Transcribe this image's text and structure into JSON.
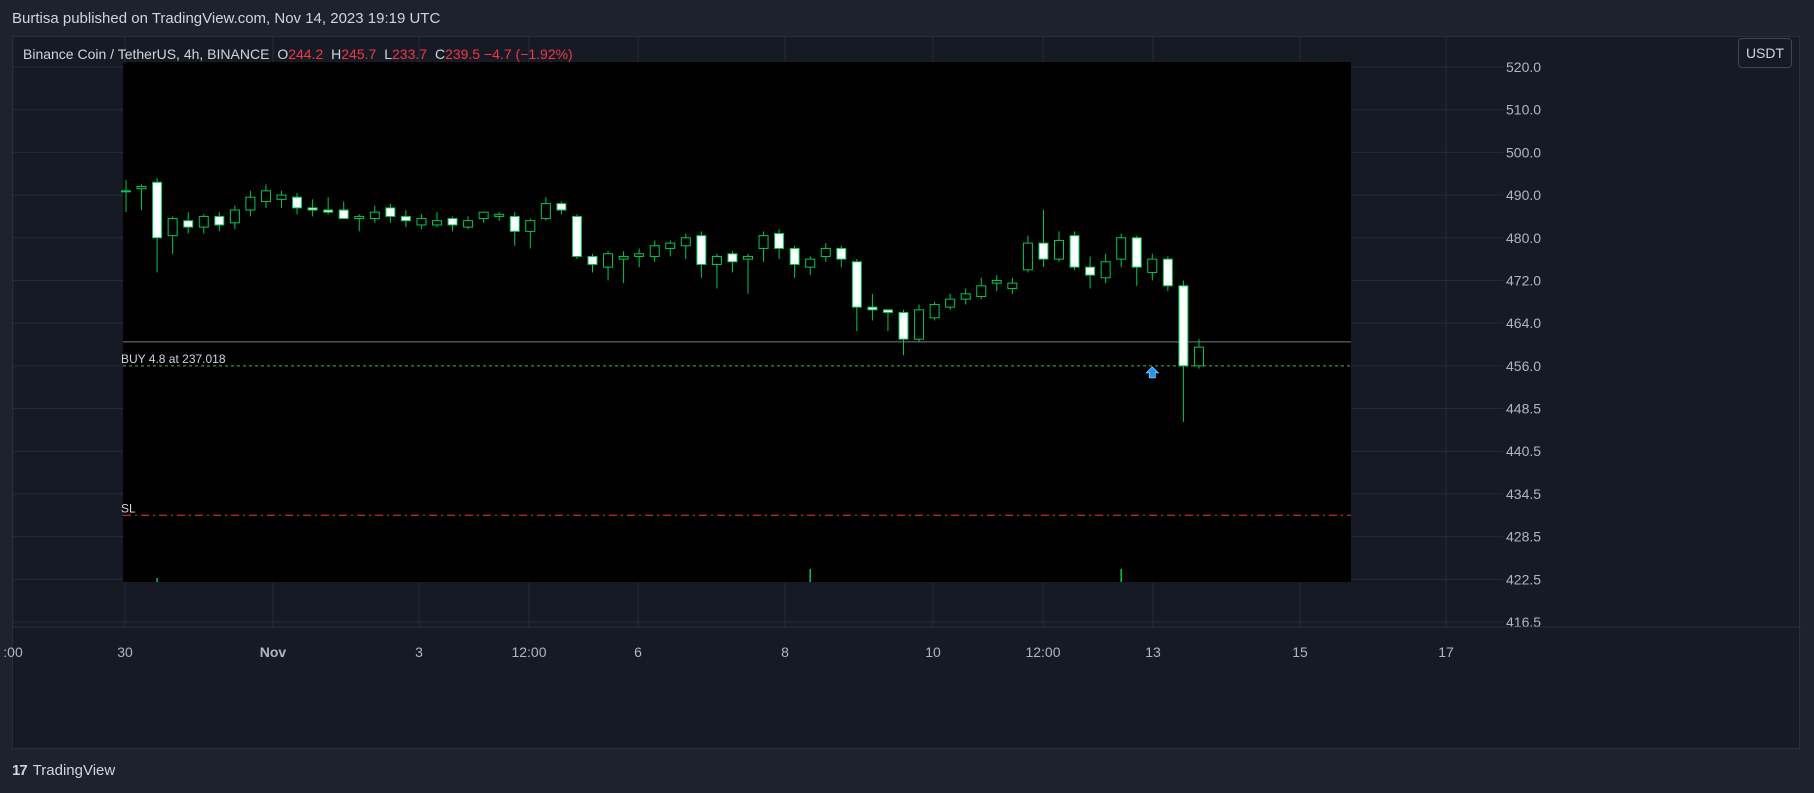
{
  "header": {
    "published_text": "Burtisa published on TradingView.com, Nov 14, 2023 19:19 UTC"
  },
  "legend": {
    "symbol": "Binance Coin / TetherUS, 4h, BINANCE",
    "open_label": "O",
    "open": "244.2",
    "high_label": "H",
    "high": "245.7",
    "low_label": "L",
    "low": "233.7",
    "close_label": "C",
    "close": "239.5",
    "change": "−4.7 (−1.92%)"
  },
  "currency_button": "USDT",
  "footer": {
    "brand": "TradingView",
    "logo_glyph": "17"
  },
  "colors": {
    "background": "#1e222d",
    "pane": "#000000",
    "candle_up_body": "#000000",
    "candle_down_body": "#ffffff",
    "candle_border": "#00c853",
    "wick": "#00c853",
    "sl_line": "#f23645",
    "buy_line": "#4caf50",
    "down_text": "#f23645"
  },
  "chart_data": {
    "type": "candlestick",
    "y_axis_ticks": [
      "520.0",
      "510.0",
      "500.0",
      "490.0",
      "480.0",
      "472.0",
      "464.0",
      "456.0",
      "448.5",
      "440.5",
      "434.5",
      "428.5",
      "422.5",
      "416.5"
    ],
    "x_axis_ticks": [
      ":00",
      "30",
      "Nov",
      "3",
      "12:00",
      "6",
      "8",
      "10",
      "12:00",
      "13",
      "15",
      "17"
    ],
    "ylim": [
      416.5,
      520.0
    ],
    "order_line": {
      "label": "BUY 4.8 at 237.018",
      "price_axis": 456.0
    },
    "sl_line": {
      "label": "SL",
      "price_axis": 431.5
    },
    "current_line": {
      "price_axis": 460.5
    },
    "buy_marker": {
      "index": 66,
      "icon": "arrow-up-icon"
    },
    "candles": [
      {
        "o": 491.0,
        "h": 493.5,
        "l": 486.0,
        "c": 491.0
      },
      {
        "o": 491.5,
        "h": 492.5,
        "l": 486.5,
        "c": 492.0
      },
      {
        "o": 493.0,
        "h": 494.0,
        "l": 473.5,
        "c": 480.0
      },
      {
        "o": 480.5,
        "h": 485.0,
        "l": 477.0,
        "c": 484.5
      },
      {
        "o": 484.0,
        "h": 486.0,
        "l": 481.0,
        "c": 482.5
      },
      {
        "o": 482.5,
        "h": 485.5,
        "l": 481.0,
        "c": 485.0
      },
      {
        "o": 485.0,
        "h": 486.0,
        "l": 481.5,
        "c": 483.0
      },
      {
        "o": 483.5,
        "h": 487.5,
        "l": 482.0,
        "c": 486.5
      },
      {
        "o": 486.5,
        "h": 491.0,
        "l": 485.0,
        "c": 489.5
      },
      {
        "o": 488.5,
        "h": 492.5,
        "l": 487.0,
        "c": 491.0
      },
      {
        "o": 489.0,
        "h": 491.0,
        "l": 487.0,
        "c": 490.0
      },
      {
        "o": 489.5,
        "h": 490.5,
        "l": 485.5,
        "c": 487.0
      },
      {
        "o": 487.0,
        "h": 489.0,
        "l": 485.0,
        "c": 486.5
      },
      {
        "o": 486.5,
        "h": 489.5,
        "l": 485.5,
        "c": 486.0
      },
      {
        "o": 486.5,
        "h": 488.5,
        "l": 484.5,
        "c": 484.5
      },
      {
        "o": 484.5,
        "h": 485.5,
        "l": 481.5,
        "c": 485.0
      },
      {
        "o": 484.5,
        "h": 487.5,
        "l": 483.5,
        "c": 486.0
      },
      {
        "o": 487.0,
        "h": 488.0,
        "l": 483.5,
        "c": 485.0
      },
      {
        "o": 485.0,
        "h": 486.5,
        "l": 482.5,
        "c": 484.0
      },
      {
        "o": 483.0,
        "h": 485.5,
        "l": 482.0,
        "c": 484.5
      },
      {
        "o": 483.0,
        "h": 486.0,
        "l": 482.5,
        "c": 484.0
      },
      {
        "o": 484.5,
        "h": 485.0,
        "l": 481.5,
        "c": 483.0
      },
      {
        "o": 482.5,
        "h": 485.0,
        "l": 482.0,
        "c": 484.0
      },
      {
        "o": 484.5,
        "h": 486.0,
        "l": 483.5,
        "c": 486.0
      },
      {
        "o": 485.0,
        "h": 486.0,
        "l": 484.0,
        "c": 485.5
      },
      {
        "o": 485.0,
        "h": 486.0,
        "l": 478.5,
        "c": 481.5
      },
      {
        "o": 481.5,
        "h": 484.5,
        "l": 478.0,
        "c": 484.0
      },
      {
        "o": 484.5,
        "h": 489.5,
        "l": 484.0,
        "c": 488.0
      },
      {
        "o": 488.0,
        "h": 488.5,
        "l": 485.5,
        "c": 486.5
      },
      {
        "o": 485.0,
        "h": 485.5,
        "l": 476.0,
        "c": 476.5
      },
      {
        "o": 476.5,
        "h": 477.0,
        "l": 473.5,
        "c": 475.0
      },
      {
        "o": 474.5,
        "h": 477.5,
        "l": 472.0,
        "c": 477.0
      },
      {
        "o": 476.0,
        "h": 477.5,
        "l": 471.5,
        "c": 476.5
      },
      {
        "o": 476.5,
        "h": 478.0,
        "l": 474.5,
        "c": 477.0
      },
      {
        "o": 476.5,
        "h": 479.5,
        "l": 475.5,
        "c": 478.5
      },
      {
        "o": 478.0,
        "h": 479.5,
        "l": 476.5,
        "c": 479.0
      },
      {
        "o": 478.5,
        "h": 481.0,
        "l": 476.0,
        "c": 480.0
      },
      {
        "o": 480.5,
        "h": 481.5,
        "l": 472.5,
        "c": 475.0
      },
      {
        "o": 475.0,
        "h": 477.0,
        "l": 470.5,
        "c": 476.5
      },
      {
        "o": 477.0,
        "h": 477.5,
        "l": 473.5,
        "c": 475.5
      },
      {
        "o": 476.0,
        "h": 477.0,
        "l": 469.5,
        "c": 476.5
      },
      {
        "o": 478.0,
        "h": 481.5,
        "l": 475.5,
        "c": 480.5
      },
      {
        "o": 481.0,
        "h": 482.0,
        "l": 476.0,
        "c": 478.0
      },
      {
        "o": 478.0,
        "h": 478.5,
        "l": 472.5,
        "c": 475.0
      },
      {
        "o": 474.5,
        "h": 476.5,
        "l": 473.0,
        "c": 476.0
      },
      {
        "o": 476.5,
        "h": 479.0,
        "l": 475.5,
        "c": 478.0
      },
      {
        "o": 478.0,
        "h": 478.5,
        "l": 474.5,
        "c": 476.0
      },
      {
        "o": 475.5,
        "h": 476.0,
        "l": 462.5,
        "c": 467.0
      },
      {
        "o": 467.0,
        "h": 469.5,
        "l": 464.5,
        "c": 466.5
      },
      {
        "o": 466.5,
        "h": 466.5,
        "l": 462.5,
        "c": 466.0
      },
      {
        "o": 466.0,
        "h": 466.5,
        "l": 458.0,
        "c": 461.0
      },
      {
        "o": 461.0,
        "h": 467.5,
        "l": 460.5,
        "c": 466.5
      },
      {
        "o": 465.0,
        "h": 468.0,
        "l": 464.5,
        "c": 467.5
      },
      {
        "o": 467.0,
        "h": 469.5,
        "l": 466.5,
        "c": 468.5
      },
      {
        "o": 468.5,
        "h": 470.5,
        "l": 467.5,
        "c": 469.5
      },
      {
        "o": 469.0,
        "h": 472.5,
        "l": 468.5,
        "c": 471.0
      },
      {
        "o": 471.5,
        "h": 473.0,
        "l": 470.0,
        "c": 472.0
      },
      {
        "o": 470.5,
        "h": 472.5,
        "l": 469.5,
        "c": 471.5
      },
      {
        "o": 474.0,
        "h": 480.5,
        "l": 473.5,
        "c": 479.0
      },
      {
        "o": 479.0,
        "h": 486.5,
        "l": 474.5,
        "c": 476.0
      },
      {
        "o": 476.0,
        "h": 481.5,
        "l": 475.5,
        "c": 479.5
      },
      {
        "o": 480.5,
        "h": 481.5,
        "l": 474.0,
        "c": 474.5
      },
      {
        "o": 474.5,
        "h": 476.5,
        "l": 470.5,
        "c": 473.0
      },
      {
        "o": 472.5,
        "h": 477.0,
        "l": 471.5,
        "c": 475.5
      },
      {
        "o": 476.0,
        "h": 481.0,
        "l": 474.5,
        "c": 480.0
      },
      {
        "o": 480.0,
        "h": 480.5,
        "l": 471.0,
        "c": 474.5
      },
      {
        "o": 473.5,
        "h": 477.0,
        "l": 472.0,
        "c": 476.0
      },
      {
        "o": 476.0,
        "h": 476.5,
        "l": 470.0,
        "c": 471.0
      },
      {
        "o": 471.0,
        "h": 472.0,
        "l": 446.0,
        "c": 456.0
      },
      {
        "o": 456.0,
        "h": 461.0,
        "l": 455.5,
        "c": 459.5
      }
    ]
  }
}
